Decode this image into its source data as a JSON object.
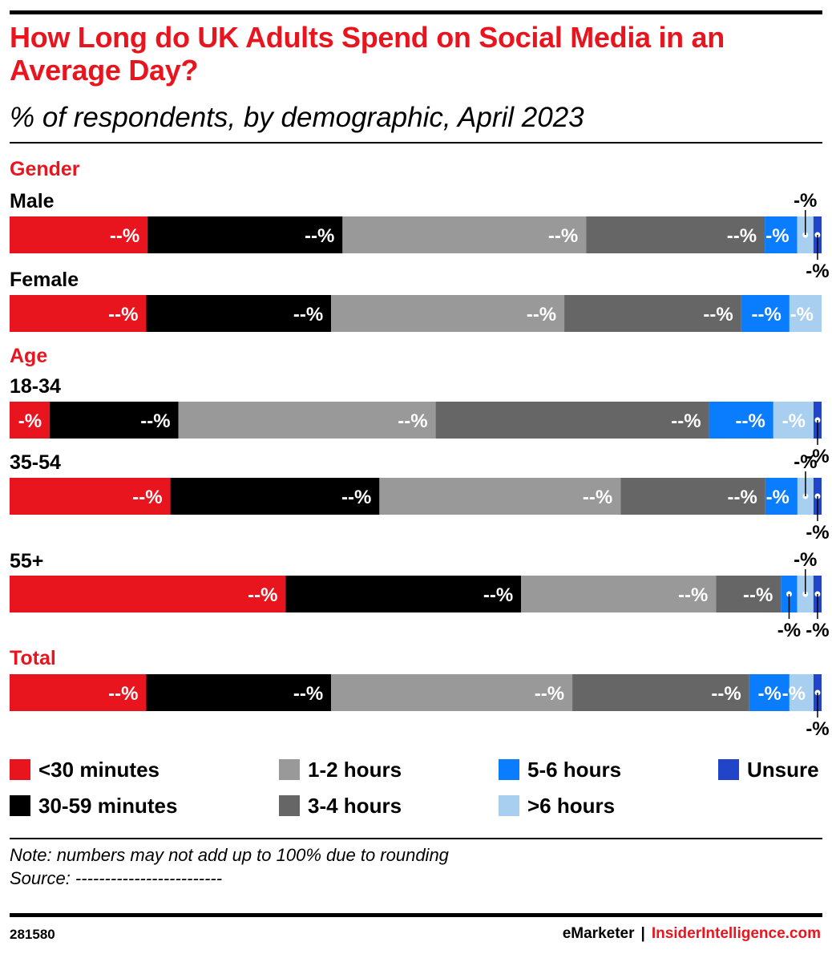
{
  "title": "How Long do UK Adults Spend on Social Media in an Average Day?",
  "subtitle": "% of respondents, by demographic, April 2023",
  "sections": {
    "gender": "Gender",
    "age": "Age",
    "total": "Total"
  },
  "rows": {
    "male": "Male",
    "female": "Female",
    "age_18_34": "18-34",
    "age_35_54": "35-54",
    "age_55": "55+"
  },
  "legend": [
    {
      "label": "<30 minutes",
      "color": "#e8151f"
    },
    {
      "label": "30-59 minutes",
      "color": "#000000"
    },
    {
      "label": "1-2 hours",
      "color": "#999999"
    },
    {
      "label": "3-4 hours",
      "color": "#666666"
    },
    {
      "label": "5-6 hours",
      "color": "#0a7dff"
    },
    {
      "label": ">6 hours",
      "color": "#a8cff0"
    },
    {
      "label": "Unsure",
      "color": "#2244c8"
    }
  ],
  "note": "Note: numbers may not add up to 100% due to rounding",
  "source": "Source: -------------------------",
  "footer": {
    "chart_id": "281580",
    "brand1": "eMarketer",
    "separator": "|",
    "brand2": "InsiderIntelligence.com"
  },
  "chart_data": {
    "type": "bar",
    "stacked": true,
    "orientation": "horizontal",
    "value_label": "--%",
    "categories": [
      "Male",
      "Female",
      "18-34",
      "35-54",
      "55+",
      "Total"
    ],
    "series": [
      {
        "name": "<30 minutes",
        "values": [
          17,
          17,
          5,
          20,
          34,
          17
        ]
      },
      {
        "name": "30-59 minutes",
        "values": [
          24,
          23,
          16,
          26,
          29,
          23
        ]
      },
      {
        "name": "1-2 hours",
        "values": [
          30,
          29,
          32,
          30,
          24,
          30
        ]
      },
      {
        "name": "3-4 hours",
        "values": [
          22,
          22,
          34,
          18,
          8,
          22
        ]
      },
      {
        "name": "5-6 hours",
        "values": [
          4,
          6,
          8,
          4,
          2,
          5
        ]
      },
      {
        "name": ">6 hours",
        "values": [
          2,
          4,
          5,
          2,
          2,
          3
        ]
      },
      {
        "name": "Unsure",
        "values": [
          1,
          0,
          1,
          1,
          1,
          1
        ]
      }
    ]
  }
}
